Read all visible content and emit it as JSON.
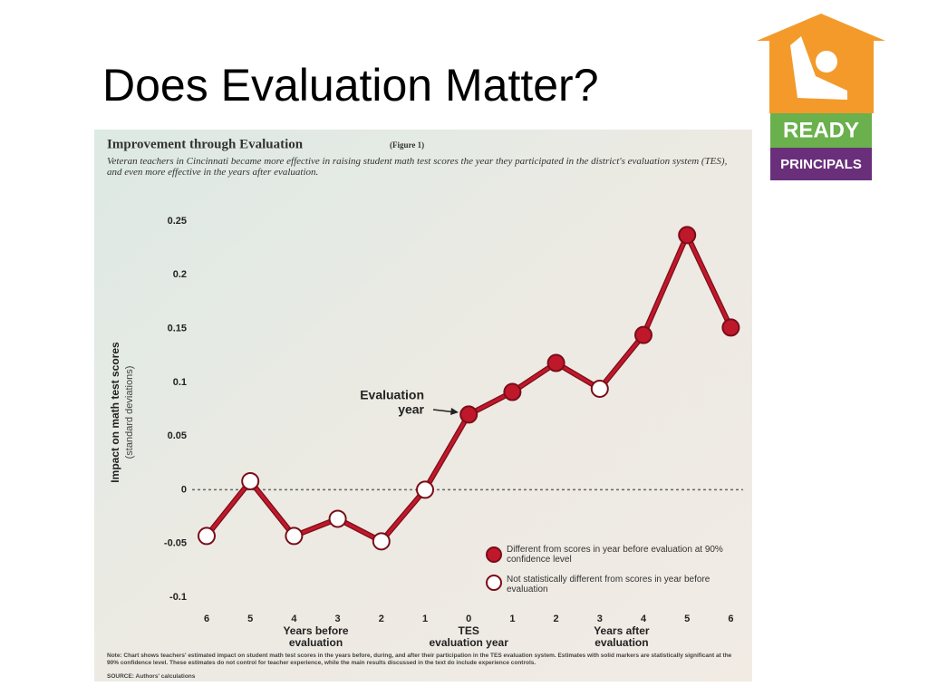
{
  "slide_title": "Does Evaluation Matter?",
  "logo": {
    "top": "READY",
    "bottom": "PRINCIPALS"
  },
  "chart_data": {
    "type": "line",
    "title": "Improvement through Evaluation",
    "figure_label": "(Figure 1)",
    "subtitle": "Veteran teachers in Cincinnati became more effective in raising student math test scores the year they participated in the district's evaluation system (TES), and even more effective in the years after evaluation.",
    "y_label": "Impact on math test scores",
    "y_sublabel": "(standard deviations)",
    "categories": [
      "6",
      "5",
      "4",
      "3",
      "2",
      "1",
      "0",
      "1",
      "2",
      "3",
      "4",
      "5",
      "6"
    ],
    "values": [
      -0.043,
      0.008,
      -0.043,
      -0.027,
      -0.048,
      0,
      0.07,
      0.091,
      0.118,
      0.094,
      0.144,
      0.237,
      0.151
    ],
    "significant": [
      false,
      false,
      false,
      false,
      false,
      false,
      true,
      true,
      true,
      false,
      true,
      true,
      true
    ],
    "colors": {
      "line": "#c0182b",
      "significant": "#c0182b",
      "not_significant": "#ffffff"
    },
    "ylim": [
      -0.1,
      0.25
    ],
    "yticks": [
      -0.1,
      -0.05,
      0,
      0.05,
      0.1,
      0.15,
      0.2,
      0.25
    ],
    "group_labels": [
      [
        "Years before",
        "evaluation"
      ],
      [
        "TES",
        "evaluation year"
      ],
      [
        "Years after",
        "evaluation"
      ]
    ],
    "annotation": [
      "Evaluation",
      "year"
    ],
    "legend": [
      "Different from scores in year before evaluation at 90% confidence level",
      "Not statistically different from scores in year before evaluation"
    ],
    "note": "Note: Chart shows teachers' estimated impact on student math test scores in the years before, during, and after their participation in the TES evaluation system. Estimates with solid markers are statistically significant at the 90% confidence level. These estimates do not control for teacher experience, while the main results discussed in the text do include experience controls.",
    "source": "SOURCE: Authors' calculations"
  }
}
